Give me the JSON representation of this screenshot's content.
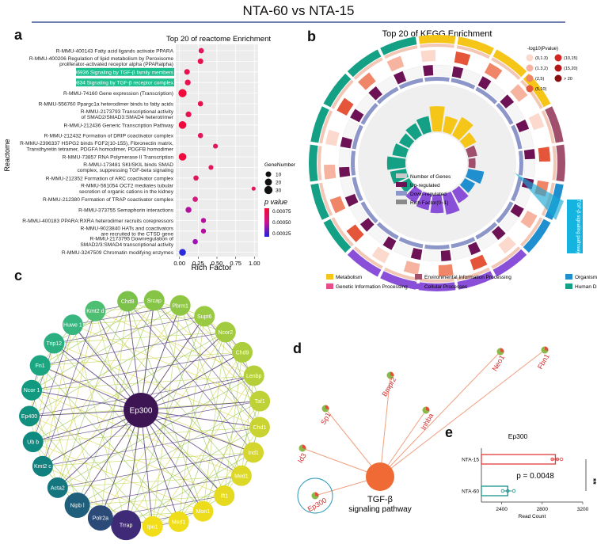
{
  "figure_title": "NTA-60 vs NTA-15",
  "panel_labels": [
    "a",
    "b",
    "c",
    "d",
    "e"
  ],
  "chart_data": [
    {
      "panel": "a",
      "type": "scatter",
      "title": "Top 20 of reactome Enrichment",
      "xlabel": "Rich Factor",
      "ylabel": "Reactome",
      "xlim": [
        -0.05,
        1.05
      ],
      "xticks": [
        "0.00",
        "0.25",
        "0.50",
        "0.75",
        "1.00"
      ],
      "grid": true,
      "size_legend_title": "GeneNumber",
      "size_legend": [
        10,
        20,
        30
      ],
      "color_legend_title": "p value",
      "color_legend": [
        "0.00075",
        "0.00050",
        "0.00025"
      ],
      "highlight_color": "#1fbf8f",
      "points": [
        {
          "label": "R-MMU-400143 Fatty acid ligands activate PPARA",
          "x": 0.29,
          "genes": 8,
          "p": 0.0005,
          "color": "#e0185a"
        },
        {
          "label": "R-MMU-400206 Regulation of lipid metabolism by Peroxisome proliferator-activated receptor alpha (PPARalpha)",
          "x": 0.28,
          "genes": 10,
          "p": 0.0006,
          "color": "#e8104d"
        },
        {
          "label": "R-MMU-9006936 Signaling by TGF-β family members",
          "x": 0.1,
          "genes": 10,
          "p": 0.0006,
          "color": "#e8104d",
          "highlight": true
        },
        {
          "label": "R-MMU-170834 Signaling by TGF-β receptor complex",
          "x": 0.11,
          "genes": 11,
          "p": 0.0006,
          "color": "#e8104d",
          "highlight": true
        },
        {
          "label": "R-MMU-74160 Gene expression (Transcription)",
          "x": 0.04,
          "genes": 30,
          "p": 0.0007,
          "color": "#ee0a3c"
        },
        {
          "label": "R-MMU-556760 Ppargc1a heterodimer binds to fatty acids",
          "x": 0.28,
          "genes": 8,
          "p": 0.0006,
          "color": "#e8104d"
        },
        {
          "label": "R-MMU-2173793 Transcriptional activity of SMAD2/SMAD3:SMAD4 heterotrimer",
          "x": 0.12,
          "genes": 11,
          "p": 0.0006,
          "color": "#e8104d"
        },
        {
          "label": "R-MMU-212436 Generic Transcription Pathway",
          "x": 0.04,
          "genes": 25,
          "p": 0.0007,
          "color": "#ee0a3c"
        },
        {
          "label": "R-MMU-212432 Formation of DRIP coactivator complex",
          "x": 0.28,
          "genes": 8,
          "p": 0.0005,
          "color": "#e0185a"
        },
        {
          "label": "R-MMU-2396337 HSPG2 binds FGF2(10-155), Fibronectin matrix, Transthyretin tetramer, PDGFA homodimer, PDGFB homodimer",
          "x": 0.48,
          "genes": 6,
          "p": 0.0005,
          "color": "#e0185a"
        },
        {
          "label": "R-MMU-73857 RNA Polymerase II Transcription",
          "x": 0.04,
          "genes": 25,
          "p": 0.0007,
          "color": "#ee0a3c"
        },
        {
          "label": "R-MMU-173481 SKI/SKIL binds SMAD complex, suppressing TGF-beta signaling",
          "x": 0.42,
          "genes": 6,
          "p": 0.0005,
          "color": "#e0185a"
        },
        {
          "label": "R-MMU-212352 Formation of ARC coactivator complex",
          "x": 0.22,
          "genes": 8,
          "p": 0.0005,
          "color": "#e0185a"
        },
        {
          "label": "R-MMU-561054 OCT2 mediates tubular secretion of organic cations in the kidney",
          "x": 0.99,
          "genes": 3,
          "p": 0.0005,
          "color": "#e0185a"
        },
        {
          "label": "R-MMU-212380 Formation of TRAP coactivator complex",
          "x": 0.21,
          "genes": 8,
          "p": 0.0004,
          "color": "#d01e7e"
        },
        {
          "label": "R-MMU-373755 Semaphorin interactions",
          "x": 0.12,
          "genes": 12,
          "p": 0.0003,
          "color": "#b40fa0"
        },
        {
          "label": "R-MMU-400183 PPARA:RXRA heterodimer recruits corepressors",
          "x": 0.32,
          "genes": 7,
          "p": 0.0003,
          "color": "#b40fa0"
        },
        {
          "label": "R-MMU-9023840 HATs and coactivators are recruited to the CTSD gene",
          "x": 0.32,
          "genes": 7,
          "p": 0.0003,
          "color": "#b40fa0"
        },
        {
          "label": "R-MMU-2173795 Downregulation of SMAD2/3:SMAD4 transcriptional activity",
          "x": 0.21,
          "genes": 8,
          "p": 0.0002,
          "color": "#a014b4"
        },
        {
          "label": "R-MMU-3247509 Chromatin modifying enzymes",
          "x": 0.04,
          "genes": 18,
          "p": 0.0001,
          "color": "#2a2adc"
        }
      ]
    },
    {
      "panel": "b",
      "type": "pie",
      "title": "Top 20 of KEGG Enrichment",
      "pvalue_legend_title": "-log10(Pvalue)",
      "pvalue_legend": [
        {
          "label": "(0,1.3)",
          "color": "#fbd9cc"
        },
        {
          "label": "(1.3,2)",
          "color": "#f6b39f"
        },
        {
          "label": "(2,5)",
          "color": "#ef8667"
        },
        {
          "label": "(5,10)",
          "color": "#e5553a"
        },
        {
          "label": "(10,15)",
          "color": "#d42724"
        },
        {
          "label": "(15,20)",
          "color": "#b71618"
        },
        {
          "label": "> 20",
          "color": "#8a0d10"
        }
      ],
      "center_legend": [
        {
          "label": "Number of Genes",
          "color": "#c9c9c9"
        },
        {
          "label": "Up-regulated",
          "color": "#6e1256"
        },
        {
          "label": "Down-regulated",
          "color": "#8d96c9"
        },
        {
          "label": "Rich Factor(0~1)",
          "color": "#8a8a8a"
        }
      ],
      "category_legend": [
        {
          "label": "Metabolism",
          "color": "#f5c518"
        },
        {
          "label": "Environmental Information Processing",
          "color": "#a0506d"
        },
        {
          "label": "Organismal Systems",
          "color": "#1f8fcf"
        },
        {
          "label": "Genetic Information Processing",
          "color": "#e84d8a"
        },
        {
          "label": "Cellular Processes",
          "color": "#8a4fd8"
        },
        {
          "label": "Human Diseases",
          "color": "#13a085"
        }
      ],
      "segments": [
        {
          "category": "Metabolism",
          "rich": 0.55
        },
        {
          "category": "Metabolism",
          "rich": 0.35
        },
        {
          "category": "Metabolism",
          "rich": 0.45
        },
        {
          "category": "Metabolism",
          "rich": 0.28
        },
        {
          "category": "Environmental Information Processing",
          "rich": 0.2
        },
        {
          "category": "Environmental Information Processing",
          "rich": 0.15
        },
        {
          "category": "Organismal Systems",
          "rich": 0.35
        },
        {
          "category": "Organismal Systems",
          "rich": 0.25
        },
        {
          "category": "Cellular Processes",
          "rich": 0.3
        },
        {
          "category": "Cellular Processes",
          "rich": 0.45
        },
        {
          "category": "Cellular Processes",
          "rich": 0.4
        },
        {
          "category": "Cellular Processes",
          "rich": 0.35
        },
        {
          "category": "Cellular Processes",
          "rich": 0.3
        },
        {
          "category": "Human Diseases",
          "rich": 0.25
        },
        {
          "category": "Human Diseases",
          "rich": 0.35
        },
        {
          "category": "Human Diseases",
          "rich": 0.4
        },
        {
          "category": "Human Diseases",
          "rich": 0.3
        },
        {
          "category": "Human Diseases",
          "rich": 0.25
        },
        {
          "category": "Human Diseases",
          "rich": 0.3
        },
        {
          "category": "Human Diseases",
          "rich": 0.35
        }
      ],
      "callout": "TGF-β signaling pathway"
    },
    {
      "panel": "c",
      "type": "network",
      "hub": "Ep300",
      "nodes": [
        {
          "name": "Chd8",
          "color": "#7cc24a"
        },
        {
          "name": "Srcap",
          "color": "#86c446"
        },
        {
          "name": "Pbrm1",
          "color": "#8fc744"
        },
        {
          "name": "Supt6",
          "color": "#9ac942"
        },
        {
          "name": "Ncor2",
          "color": "#a2cb40"
        },
        {
          "name": "Chd9",
          "color": "#abcd3e"
        },
        {
          "name": "Lenbp",
          "color": "#b5cf3a"
        },
        {
          "name": "Taf1",
          "color": "#bed137"
        },
        {
          "name": "Chd1",
          "color": "#c9d432"
        },
        {
          "name": "Ind1",
          "color": "#d4d62e"
        },
        {
          "name": "Med1",
          "color": "#ddd827"
        },
        {
          "name": "Ift1",
          "color": "#e6da21"
        },
        {
          "name": "Mon1",
          "color": "#eddc1c"
        },
        {
          "name": "Med1",
          "color": "#f0dd1a"
        },
        {
          "name": "Ipo1",
          "color": "#f2de18"
        },
        {
          "name": "Trrap",
          "color": "#3f2a78"
        },
        {
          "name": "Polr2a",
          "color": "#2b4a78"
        },
        {
          "name": "Nipb l",
          "color": "#1f5f7c"
        },
        {
          "name": "Acta2",
          "color": "#157680"
        },
        {
          "name": "Kmt2 c",
          "color": "#11817f"
        },
        {
          "name": "Ub b",
          "color": "#0f8a80"
        },
        {
          "name": "Ep400",
          "color": "#11907f"
        },
        {
          "name": "Ncor 1",
          "color": "#129a80"
        },
        {
          "name": "Fn1",
          "color": "#1ba581"
        },
        {
          "name": "Trip12",
          "color": "#2aaf80"
        },
        {
          "name": "Huwe 1",
          "color": "#37b67f"
        },
        {
          "name": "Kmt2 d",
          "color": "#4cbf73"
        }
      ]
    },
    {
      "panel": "d",
      "type": "network",
      "center": "TGF-β\nsignaling pathway",
      "genes": [
        "Id3",
        "Sp1",
        "Bmpr2",
        "Inhba",
        "Neo1",
        "Fbn1",
        "Ep300"
      ]
    },
    {
      "panel": "e",
      "type": "bar",
      "title": "Ep300",
      "xlabel": "Read Count",
      "categories": [
        "NTA-15",
        "NTA-60"
      ],
      "values": [
        2930,
        2460
      ],
      "errors": [
        40,
        40
      ],
      "colors": [
        "#e23a3a",
        "#17928c"
      ],
      "xlim": [
        2200,
        3200
      ],
      "xticks": [
        "2400",
        "2800",
        "3200"
      ],
      "pvalue": "p = 0.0048",
      "significance": "**",
      "replicates": [
        [
          2900,
          2950,
          2990
        ],
        [
          2410,
          2460,
          2520
        ]
      ]
    }
  ]
}
